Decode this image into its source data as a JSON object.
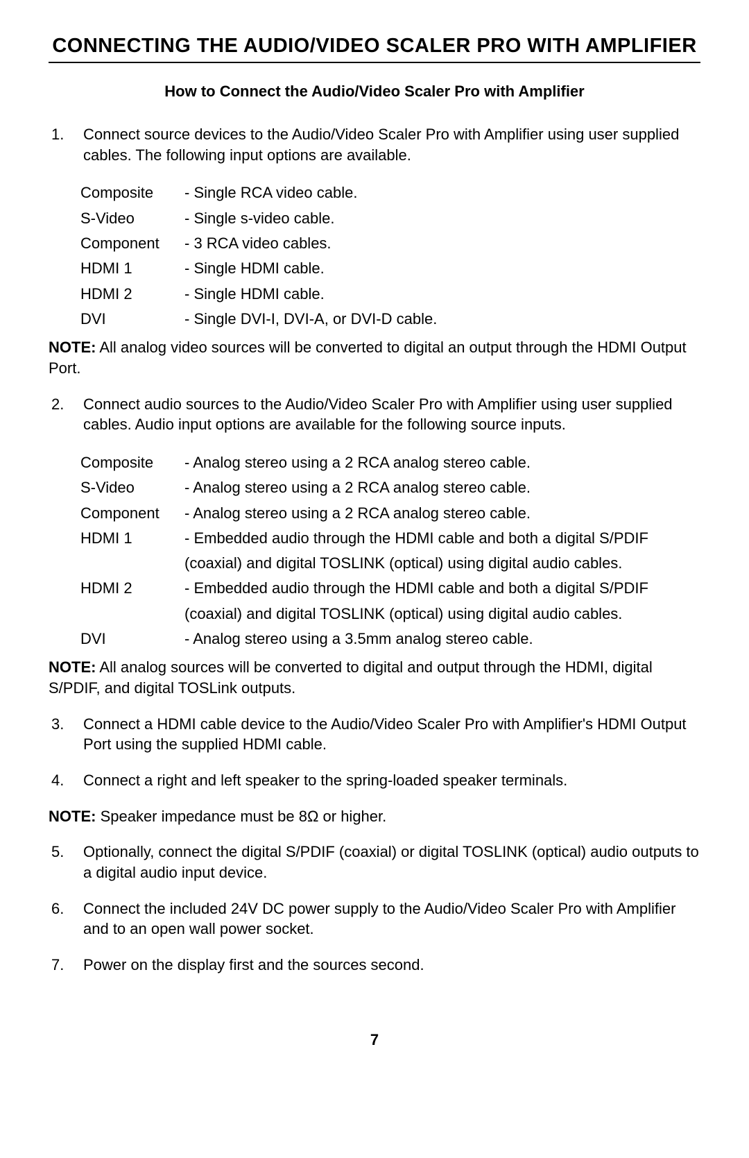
{
  "section_title": "CONNECTING THE AUDIO/VIDEO SCALER PRO WITH AMPLIFIER",
  "subtitle": "How to Connect the Audio/Video Scaler Pro with Amplifier",
  "steps": {
    "s1": {
      "num": "1.",
      "text": "Connect source devices to the Audio/Video Scaler Pro with Amplifier using user supplied cables. The following input options are available."
    },
    "s2": {
      "num": "2.",
      "text": "Connect audio sources to the Audio/Video Scaler Pro with Amplifier using user supplied cables. Audio input options are available for the following source inputs."
    },
    "s3": {
      "num": "3.",
      "text": "Connect a HDMI cable device to the Audio/Video Scaler Pro with Amplifier's HDMI Output Port using the supplied HDMI cable."
    },
    "s4": {
      "num": "4.",
      "text": "Connect a right and left speaker to the spring-loaded speaker terminals."
    },
    "s5": {
      "num": "5.",
      "text": "Optionally, connect the digital S/PDIF (coaxial) or digital TOSLINK (optical) audio outputs to a digital audio input device."
    },
    "s6": {
      "num": "6.",
      "text": "Connect the included 24V DC power supply to the Audio/Video Scaler Pro with Amplifier and to an open wall power socket."
    },
    "s7": {
      "num": "7.",
      "text": "Power on the display first and the sources second."
    }
  },
  "video_inputs": {
    "r0": {
      "label": "Composite",
      "desc": "- Single RCA video cable."
    },
    "r1": {
      "label": "S-Video",
      "desc": "- Single s-video cable."
    },
    "r2": {
      "label": "Component",
      "desc": "- 3 RCA video cables."
    },
    "r3": {
      "label": "HDMI 1",
      "desc": "- Single HDMI cable."
    },
    "r4": {
      "label": "HDMI 2",
      "desc": "- Single HDMI cable."
    },
    "r5": {
      "label": "DVI",
      "desc": "- Single DVI-I, DVI-A, or DVI-D cable."
    }
  },
  "audio_inputs": {
    "r0": {
      "label": "Composite",
      "desc": "- Analog stereo using a 2 RCA analog stereo cable."
    },
    "r1": {
      "label": "S-Video",
      "desc": "- Analog stereo using a 2 RCA analog stereo cable."
    },
    "r2": {
      "label": "Component",
      "desc": "- Analog stereo using a 2 RCA analog stereo cable."
    },
    "r3": {
      "label": "HDMI 1",
      "desc": "- Embedded audio through the HDMI cable and both a digital S/PDIF (coaxial) and digital TOSLINK (optical) using digital audio cables."
    },
    "r4": {
      "label": "HDMI 2",
      "desc": "- Embedded audio through the HDMI cable and both a digital S/PDIF (coaxial) and digital TOSLINK (optical) using digital audio cables."
    },
    "r5": {
      "label": "DVI",
      "desc": "- Analog stereo using a 3.5mm analog stereo cable."
    }
  },
  "notes": {
    "label": "NOTE:",
    "n1": " All analog video sources will be converted to digital an output through the HDMI Output Port.",
    "n2": " All analog sources will be converted to digital and output through the HDMI, digital S/PDIF, and digital TOSLink outputs.",
    "n3": " Speaker impedance must be 8Ω or higher."
  },
  "page_number": "7",
  "colors": {
    "text": "#000000",
    "background": "#ffffff",
    "rule": "#000000"
  },
  "typography": {
    "body_font": "Arial, Helvetica, sans-serif",
    "body_size_pt": 16,
    "title_size_pt": 22,
    "subtitle_size_pt": 16
  }
}
